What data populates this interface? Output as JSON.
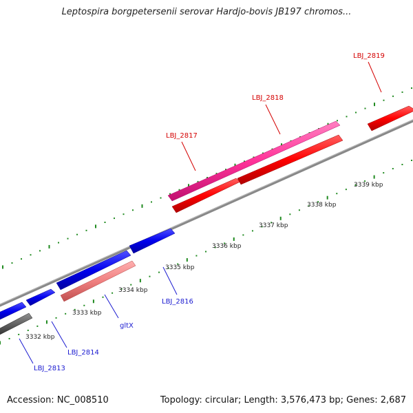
{
  "title": "Leptospira borgpetersenii serovar Hardjo-bovis JB197 chromos...",
  "footer": {
    "accession": "Accession: NC_008510",
    "summary": "Topology: circular; Length: 3,576,473 bp; Genes: 2,687"
  },
  "ticks": [
    "3332 kbp",
    "3333 kbp",
    "3334 kbp",
    "3335 kbp",
    "3336 kbp",
    "3337 kbp",
    "3338 kbp",
    "3339 kbp"
  ],
  "genes": [
    {
      "name": "LBJ_2813",
      "color": "#1a1ad0"
    },
    {
      "name": "LBJ_2814",
      "color": "#1a1ad0"
    },
    {
      "name": "gltX",
      "color": "#1a1ad0"
    },
    {
      "name": "LBJ_2816",
      "color": "#1a1ad0"
    },
    {
      "name": "LBJ_2817",
      "color": "#d40000"
    },
    {
      "name": "LBJ_2818",
      "color": "#d40000"
    },
    {
      "name": "LBJ_2819",
      "color": "#d40000"
    }
  ],
  "colors": {
    "forward_strand": "#ff0000",
    "reverse_strand": "#0000ee",
    "highlight_forward": "#ff3399",
    "highlight_reverse": "#f08080",
    "other": "#606060",
    "backbone": "#888888",
    "tick": "#1f8a1f"
  }
}
